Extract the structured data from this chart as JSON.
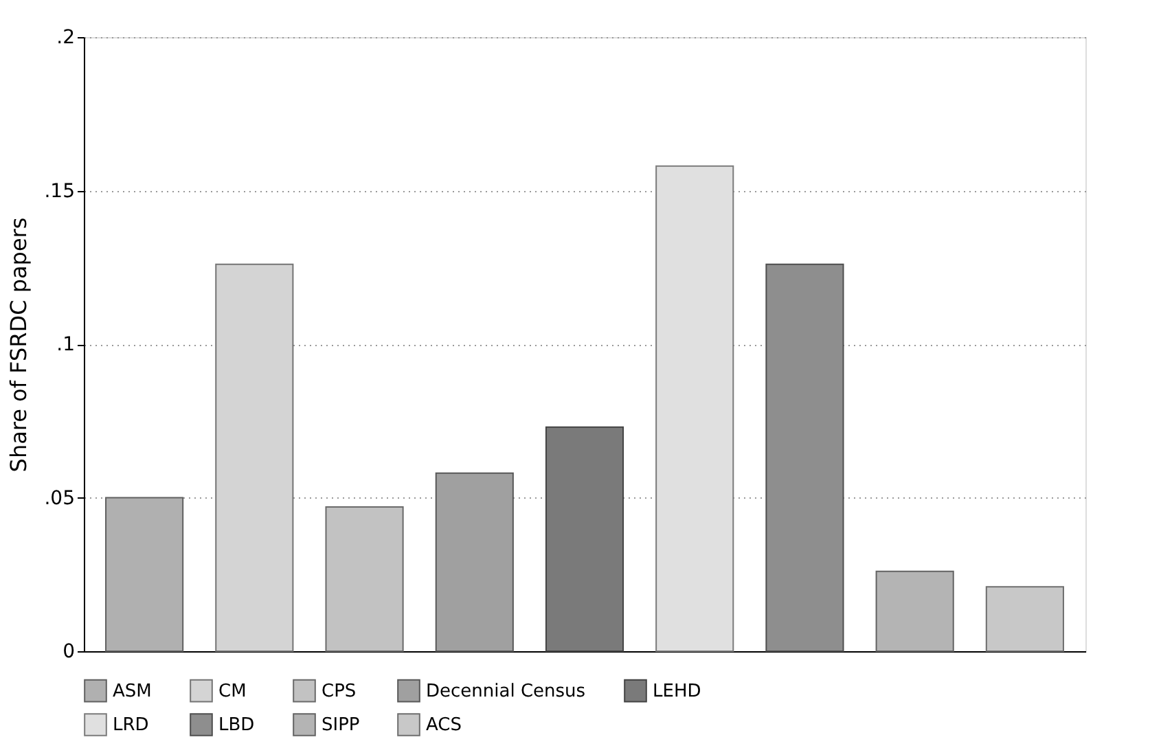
{
  "chart_data": {
    "type": "bar",
    "ylabel": "Share of FSRDC papers",
    "categories": [
      null,
      null,
      null,
      null,
      null,
      null,
      null,
      null,
      null
    ],
    "series": [
      {
        "name": "ASM",
        "color": "#b0b0b0",
        "values": [
          0.05,
          null,
          null,
          null,
          null,
          null,
          null,
          null,
          null
        ]
      },
      {
        "name": "CM",
        "color": "#d4d4d4",
        "values": [
          null,
          0.126,
          null,
          null,
          null,
          null,
          null,
          null,
          null
        ]
      },
      {
        "name": "CPS",
        "color": "#c2c2c2",
        "values": [
          null,
          null,
          0.047,
          null,
          null,
          null,
          null,
          null,
          null
        ]
      },
      {
        "name": "Decennial Census",
        "color": "#a0a0a0",
        "values": [
          null,
          null,
          null,
          0.058,
          null,
          null,
          null,
          null,
          null
        ]
      },
      {
        "name": "LEHD",
        "color": "#7a7a7a",
        "values": [
          null,
          null,
          null,
          null,
          0.073,
          null,
          null,
          null,
          null
        ]
      },
      {
        "name": "LRD",
        "color": "#e0e0e0",
        "values": [
          null,
          null,
          null,
          null,
          null,
          0.158,
          null,
          null,
          null
        ]
      },
      {
        "name": "LBD",
        "color": "#8e8e8e",
        "values": [
          null,
          null,
          null,
          null,
          null,
          null,
          0.126,
          null,
          null
        ]
      },
      {
        "name": "SIPP",
        "color": "#b4b4b4",
        "values": [
          null,
          null,
          null,
          null,
          null,
          null,
          null,
          0.026,
          null
        ]
      },
      {
        "name": "ACS",
        "color": "#c8c8c8",
        "values": [
          null,
          null,
          null,
          null,
          null,
          null,
          null,
          null,
          0.021
        ]
      }
    ],
    "ylim": [
      0,
      0.2
    ],
    "yticks": [
      0,
      {
        "value": 0.05,
        "label": ".05"
      },
      {
        "value": 0.1,
        "label": ".1"
      },
      {
        "value": 0.15,
        "label": ".15"
      },
      {
        "value": 0.2,
        "label": ".2"
      }
    ],
    "grid": "y",
    "legend": "bottom"
  }
}
